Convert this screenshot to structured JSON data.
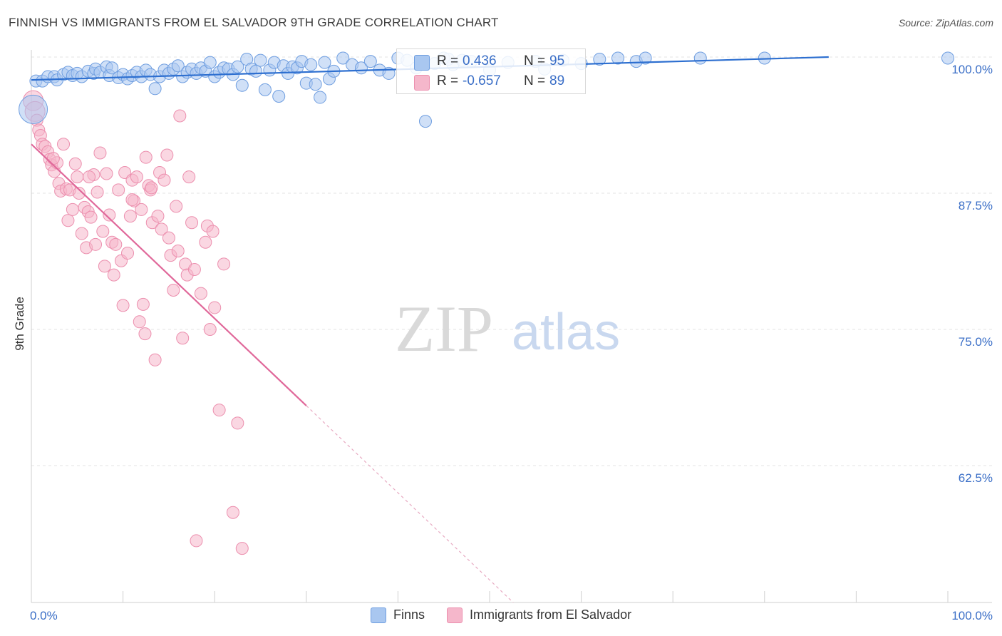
{
  "title": "FINNISH VS IMMIGRANTS FROM EL SALVADOR 9TH GRADE CORRELATION CHART",
  "source": "Source: ZipAtlas.com",
  "watermark": {
    "zip": "ZIP",
    "atlas": "atlas"
  },
  "legend": {
    "r_label": "R =",
    "n_label": "N =",
    "finns": {
      "r": "0.436",
      "n": "95"
    },
    "salvador": {
      "r": "-0.657",
      "n": "89"
    }
  },
  "bottom_legend": {
    "finns": "Finns",
    "salvador": "Immigrants from El Salvador"
  },
  "chart_data": {
    "type": "scatter",
    "title": "FINNISH VS IMMIGRANTS FROM EL SALVADOR 9TH GRADE CORRELATION CHART",
    "xlabel": "",
    "ylabel": "9th Grade",
    "xlim": [
      0,
      100
    ],
    "ylim": [
      51.5,
      101.5
    ],
    "x_tick_labels": [
      "0.0%",
      "100.0%"
    ],
    "y_ticks": [
      100,
      87.5,
      75,
      62.5
    ],
    "y_tick_labels": [
      "100.0%",
      "87.5%",
      "75.0%",
      "62.5%"
    ],
    "grid": true,
    "colors": {
      "finns": "#a9c7f0",
      "finns_line": "#2d6fd0",
      "salvador": "#f5b7cb",
      "salvador_line": "#e0689a",
      "tick": "#3b6fc7"
    },
    "series": [
      {
        "name": "Finns",
        "r": 0.436,
        "n": 95,
        "trend": {
          "x0": 0,
          "y0": 97.9,
          "x1": 87,
          "y1": 100.0,
          "dashed_to": null
        },
        "points": [
          [
            0.2,
            95.2
          ],
          [
            0.5,
            97.8
          ],
          [
            1.2,
            97.8
          ],
          [
            1.8,
            98.2
          ],
          [
            2.5,
            98.2
          ],
          [
            2.8,
            97.9
          ],
          [
            3.5,
            98.4
          ],
          [
            4.0,
            98.6
          ],
          [
            4.5,
            98.3
          ],
          [
            5.0,
            98.5
          ],
          [
            5.5,
            98.2
          ],
          [
            6.2,
            98.7
          ],
          [
            6.8,
            98.5
          ],
          [
            7.0,
            98.9
          ],
          [
            7.5,
            98.6
          ],
          [
            8.2,
            99.1
          ],
          [
            8.5,
            98.3
          ],
          [
            8.8,
            99.0
          ],
          [
            9.5,
            98.1
          ],
          [
            10.0,
            98.4
          ],
          [
            10.5,
            98.0
          ],
          [
            11.0,
            98.3
          ],
          [
            11.5,
            98.6
          ],
          [
            12.0,
            98.2
          ],
          [
            12.5,
            98.8
          ],
          [
            13.0,
            98.4
          ],
          [
            13.5,
            97.1
          ],
          [
            14.0,
            98.2
          ],
          [
            14.5,
            98.8
          ],
          [
            15.0,
            98.5
          ],
          [
            15.5,
            98.9
          ],
          [
            16.0,
            99.2
          ],
          [
            16.5,
            98.2
          ],
          [
            17.0,
            98.6
          ],
          [
            17.5,
            98.9
          ],
          [
            18.0,
            98.5
          ],
          [
            18.5,
            99.0
          ],
          [
            19.0,
            98.7
          ],
          [
            19.5,
            99.5
          ],
          [
            20.0,
            98.2
          ],
          [
            20.5,
            98.6
          ],
          [
            21.0,
            99.0
          ],
          [
            21.5,
            98.9
          ],
          [
            22.0,
            98.4
          ],
          [
            22.5,
            99.1
          ],
          [
            23.0,
            97.4
          ],
          [
            23.5,
            99.8
          ],
          [
            24.0,
            98.9
          ],
          [
            24.5,
            98.7
          ],
          [
            25.0,
            99.7
          ],
          [
            25.5,
            97.0
          ],
          [
            26.0,
            98.8
          ],
          [
            26.5,
            99.5
          ],
          [
            27.0,
            96.4
          ],
          [
            27.5,
            99.2
          ],
          [
            28.0,
            98.5
          ],
          [
            28.5,
            99.1
          ],
          [
            29.0,
            99.0
          ],
          [
            29.5,
            99.6
          ],
          [
            30.0,
            97.6
          ],
          [
            30.5,
            99.3
          ],
          [
            31.0,
            97.5
          ],
          [
            31.5,
            96.3
          ],
          [
            32.0,
            99.5
          ],
          [
            32.5,
            98.0
          ],
          [
            33.0,
            98.7
          ],
          [
            34.0,
            99.9
          ],
          [
            35.0,
            99.3
          ],
          [
            36.0,
            99.0
          ],
          [
            37.0,
            99.6
          ],
          [
            38.0,
            98.8
          ],
          [
            39.0,
            98.5
          ],
          [
            40.0,
            99.9
          ],
          [
            41.0,
            99.7
          ],
          [
            42.0,
            99.0
          ],
          [
            43.0,
            94.1
          ],
          [
            44.0,
            99.4
          ],
          [
            45.0,
            99.9
          ],
          [
            46.0,
            99.3
          ],
          [
            47.0,
            99.7
          ],
          [
            48.0,
            99.6
          ],
          [
            50.0,
            98.8
          ],
          [
            52.0,
            99.5
          ],
          [
            55.0,
            99.6
          ],
          [
            56.0,
            98.9
          ],
          [
            58.0,
            99.7
          ],
          [
            60.0,
            99.4
          ],
          [
            62.0,
            99.8
          ],
          [
            64.0,
            99.9
          ],
          [
            66.0,
            99.6
          ],
          [
            67.0,
            99.9
          ],
          [
            73.0,
            99.9
          ],
          [
            80.0,
            99.9
          ],
          [
            100.0,
            99.9
          ],
          [
            45.5,
            99.8
          ]
        ]
      },
      {
        "name": "Immigrants from El Salvador",
        "r": -0.657,
        "n": 89,
        "trend": {
          "x0": 0,
          "y0": 92.0,
          "x1": 30,
          "y1": 68.0,
          "dashed_to": [
            60,
            44.0
          ]
        },
        "points": [
          [
            0.2,
            96.0
          ],
          [
            0.4,
            95.0
          ],
          [
            0.6,
            94.2
          ],
          [
            0.8,
            93.3
          ],
          [
            1.0,
            92.8
          ],
          [
            1.2,
            92.0
          ],
          [
            1.5,
            91.8
          ],
          [
            1.8,
            91.3
          ],
          [
            2.0,
            90.6
          ],
          [
            2.2,
            90.1
          ],
          [
            2.5,
            89.5
          ],
          [
            2.8,
            90.3
          ],
          [
            3.0,
            88.4
          ],
          [
            3.2,
            87.7
          ],
          [
            3.5,
            92.0
          ],
          [
            3.8,
            87.9
          ],
          [
            4.0,
            85.0
          ],
          [
            4.2,
            87.8
          ],
          [
            4.5,
            86.0
          ],
          [
            4.8,
            90.2
          ],
          [
            5.0,
            89.0
          ],
          [
            5.2,
            87.5
          ],
          [
            5.5,
            83.8
          ],
          [
            5.8,
            86.2
          ],
          [
            6.0,
            82.5
          ],
          [
            6.2,
            85.8
          ],
          [
            6.5,
            85.3
          ],
          [
            6.8,
            89.2
          ],
          [
            7.0,
            82.8
          ],
          [
            7.2,
            87.6
          ],
          [
            7.5,
            91.2
          ],
          [
            7.8,
            84.0
          ],
          [
            8.0,
            80.8
          ],
          [
            8.2,
            89.3
          ],
          [
            8.5,
            85.5
          ],
          [
            8.8,
            83.0
          ],
          [
            9.0,
            80.0
          ],
          [
            9.2,
            82.8
          ],
          [
            9.5,
            87.8
          ],
          [
            9.8,
            81.3
          ],
          [
            10.0,
            77.2
          ],
          [
            10.2,
            89.4
          ],
          [
            10.5,
            82.0
          ],
          [
            10.8,
            85.4
          ],
          [
            11.0,
            88.7
          ],
          [
            11.2,
            86.8
          ],
          [
            11.5,
            89.0
          ],
          [
            11.8,
            75.7
          ],
          [
            12.0,
            86.0
          ],
          [
            12.2,
            77.3
          ],
          [
            12.5,
            90.8
          ],
          [
            12.8,
            88.2
          ],
          [
            13.0,
            87.8
          ],
          [
            13.2,
            84.8
          ],
          [
            13.5,
            72.2
          ],
          [
            13.8,
            85.4
          ],
          [
            14.0,
            89.4
          ],
          [
            14.2,
            84.2
          ],
          [
            14.5,
            88.7
          ],
          [
            14.8,
            91.0
          ],
          [
            15.0,
            83.4
          ],
          [
            15.2,
            81.8
          ],
          [
            15.5,
            78.6
          ],
          [
            15.8,
            86.3
          ],
          [
            16.0,
            82.2
          ],
          [
            16.2,
            94.6
          ],
          [
            16.5,
            74.2
          ],
          [
            16.8,
            81.0
          ],
          [
            17.0,
            80.0
          ],
          [
            17.2,
            89.0
          ],
          [
            17.5,
            84.8
          ],
          [
            17.8,
            80.5
          ],
          [
            18.0,
            55.6
          ],
          [
            18.5,
            78.3
          ],
          [
            19.0,
            83.0
          ],
          [
            19.2,
            84.5
          ],
          [
            19.5,
            75.0
          ],
          [
            19.8,
            84.0
          ],
          [
            20.0,
            77.0
          ],
          [
            20.5,
            67.6
          ],
          [
            21.0,
            81.0
          ],
          [
            22.0,
            58.2
          ],
          [
            22.5,
            66.4
          ],
          [
            23.0,
            54.9
          ],
          [
            12.4,
            74.6
          ],
          [
            11.0,
            86.9
          ],
          [
            13.1,
            88.0
          ],
          [
            6.3,
            89.0
          ],
          [
            2.4,
            90.7
          ]
        ]
      }
    ]
  }
}
